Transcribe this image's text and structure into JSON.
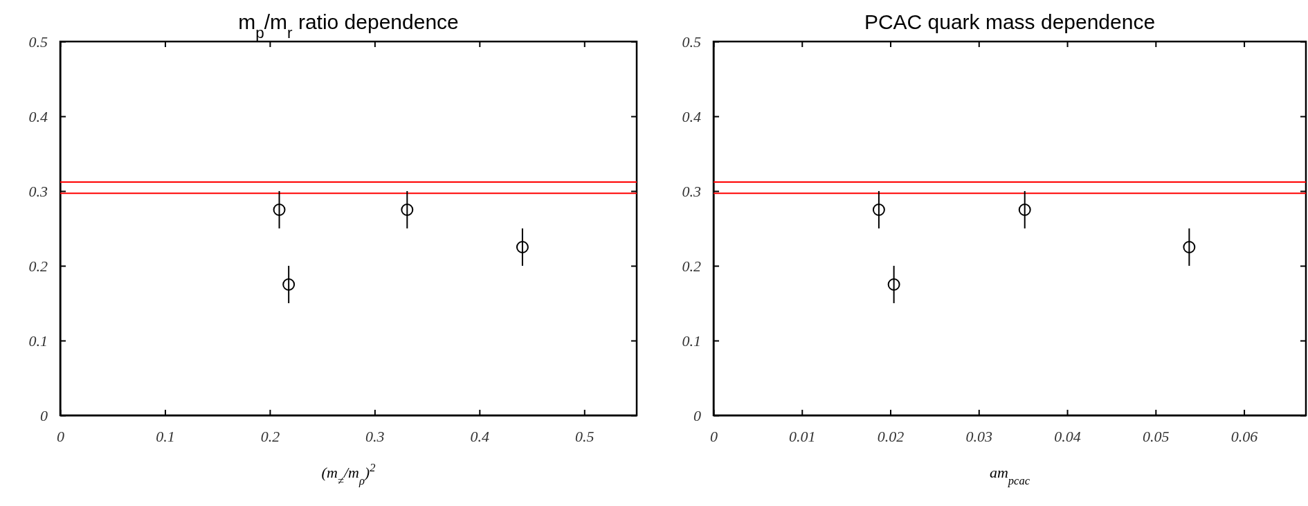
{
  "chart_data": [
    {
      "type": "scatter",
      "title": "m$_{p}$/m$_{r}$ ratio dependence",
      "xlabel": "(m$_{≠}$/m$_{ρ}$)$^{2}$",
      "x": [
        0.209,
        0.218,
        0.331,
        0.441
      ],
      "values": [
        0.275,
        0.175,
        0.275,
        0.225
      ],
      "errors": [
        0.025,
        0.025,
        0.025,
        0.025
      ],
      "color": "#000000",
      "marker": "circle",
      "xlim": [
        0,
        0.55
      ],
      "xticks": [
        0,
        0.1,
        0.2,
        0.3,
        0.4,
        0.5
      ],
      "ylim": [
        0,
        0.5
      ],
      "yticks": [
        0,
        0.1,
        0.2,
        0.3,
        0.4,
        0.5
      ],
      "ref_lines": [
        {
          "axis": "y",
          "value": 0.297,
          "color": "#ff0000"
        },
        {
          "axis": "y",
          "value": 0.312,
          "color": "#ff0000"
        }
      ]
    },
    {
      "type": "scatter",
      "title": "PCAC quark mass dependence",
      "xlabel": "am$_{pcac}$",
      "x": [
        0.0187,
        0.0204,
        0.0352,
        0.0538
      ],
      "values": [
        0.275,
        0.175,
        0.275,
        0.225
      ],
      "errors": [
        0.025,
        0.025,
        0.025,
        0.025
      ],
      "color": "#000000",
      "marker": "circle",
      "xlim": [
        0,
        0.067
      ],
      "xticks": [
        0,
        0.01,
        0.02,
        0.03,
        0.04,
        0.05,
        0.06
      ],
      "ylim": [
        0,
        0.5
      ],
      "yticks": [
        0,
        0.1,
        0.2,
        0.3,
        0.4,
        0.5
      ],
      "ref_lines": [
        {
          "axis": "y",
          "value": 0.297,
          "color": "#ff0000"
        },
        {
          "axis": "y",
          "value": 0.312,
          "color": "#ff0000"
        }
      ]
    }
  ]
}
